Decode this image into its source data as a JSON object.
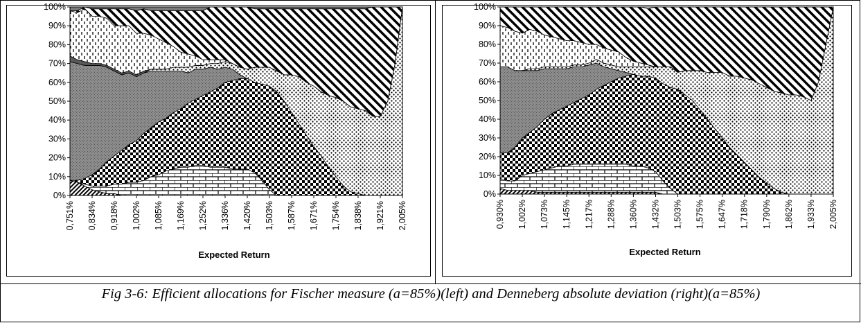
{
  "caption": "Fig 3-6: Efficient allocations for Fischer measure (a=85%)(left) and Denneberg absolute deviation (right)(a=85%)",
  "chart_data": [
    {
      "type": "area",
      "title": "",
      "xlabel": "Expected Return",
      "ylabel": "",
      "stacked": "percent",
      "ylim": [
        0,
        100
      ],
      "yticks": [
        "0%",
        "10%",
        "20%",
        "30%",
        "40%",
        "50%",
        "60%",
        "70%",
        "80%",
        "90%",
        "100%"
      ],
      "xticks": [
        "0,751%",
        "0,834%",
        "0,918%",
        "1,002%",
        "1,085%",
        "1,169%",
        "1,252%",
        "1,336%",
        "1,420%",
        "1,503%",
        "1,587%",
        "1,671%",
        "1,754%",
        "1,838%",
        "1,921%",
        "2,005%"
      ],
      "x": [
        0.751,
        0.779,
        0.807,
        0.834,
        0.862,
        0.89,
        0.918,
        0.946,
        0.974,
        1.002,
        1.03,
        1.058,
        1.085,
        1.113,
        1.141,
        1.169,
        1.197,
        1.224,
        1.252,
        1.28,
        1.308,
        1.336,
        1.364,
        1.392,
        1.42,
        1.448,
        1.475,
        1.503,
        1.531,
        1.559,
        1.587,
        1.615,
        1.643,
        1.671,
        1.698,
        1.726,
        1.754,
        1.782,
        1.81,
        1.838,
        1.866,
        1.893,
        1.921,
        1.949,
        1.977,
        2.005
      ],
      "series": [
        {
          "pattern": "diagonal-dark",
          "values": [
            8,
            7,
            5,
            3,
            2,
            1,
            1,
            0,
            0,
            0,
            0,
            0,
            0,
            0,
            0,
            0,
            0,
            0,
            0,
            0,
            0,
            0,
            0,
            0,
            0,
            0,
            0,
            0,
            0,
            0,
            0,
            0,
            0,
            0,
            0,
            0,
            0,
            0,
            0,
            0,
            0,
            0,
            0,
            0,
            0,
            0
          ]
        },
        {
          "pattern": "brick",
          "values": [
            0,
            0,
            1,
            2,
            3,
            4,
            5,
            6,
            7,
            7,
            8,
            10,
            11,
            13,
            14,
            15,
            15,
            16,
            16,
            15,
            15,
            15,
            14,
            14,
            14,
            12,
            8,
            3,
            0,
            0,
            0,
            0,
            0,
            0,
            0,
            0,
            0,
            0,
            0,
            0,
            0,
            0,
            0,
            0,
            0,
            0
          ]
        },
        {
          "pattern": "checker-large",
          "values": [
            0,
            1,
            3,
            6,
            9,
            13,
            15,
            18,
            20,
            22,
            25,
            26,
            28,
            28,
            30,
            31,
            34,
            35,
            37,
            40,
            42,
            45,
            47,
            48,
            48,
            48,
            51,
            55,
            55,
            50,
            44,
            38,
            32,
            26,
            21,
            15,
            10,
            5,
            2,
            1,
            0,
            0,
            0,
            0,
            0,
            0
          ]
        },
        {
          "pattern": "gray-dots",
          "values": [
            63,
            62,
            60,
            58,
            55,
            50,
            45,
            40,
            38,
            34,
            32,
            30,
            27,
            25,
            22,
            20,
            16,
            16,
            14,
            13,
            10,
            8,
            6,
            2,
            0,
            0,
            0,
            0,
            0,
            0,
            0,
            0,
            0,
            0,
            0,
            0,
            0,
            0,
            0,
            0,
            0,
            0,
            0,
            0,
            0,
            0
          ]
        },
        {
          "pattern": "fine-dots",
          "values": [
            0,
            0,
            0,
            0,
            0,
            0,
            0,
            0,
            0,
            0,
            0,
            1,
            1,
            1,
            2,
            2,
            3,
            2,
            2,
            2,
            3,
            3,
            3,
            4,
            5,
            8,
            9,
            10,
            11,
            14,
            20,
            25,
            28,
            32,
            34,
            38,
            42,
            45,
            45,
            45,
            45,
            42,
            42,
            50,
            70,
            100
          ]
        },
        {
          "pattern": "dark-gray",
          "values": [
            3,
            2,
            2,
            1,
            1,
            1,
            1,
            1,
            1,
            1,
            1,
            0,
            0,
            0,
            0,
            0,
            0,
            0,
            0,
            0,
            0,
            0,
            0,
            0,
            0,
            0,
            0,
            0,
            0,
            0,
            0,
            0,
            0,
            0,
            0,
            0,
            0,
            0,
            0,
            0,
            0,
            0,
            0,
            0,
            0,
            0
          ]
        },
        {
          "pattern": "dashes-vertical",
          "values": [
            24,
            25,
            28,
            25,
            25,
            25,
            23,
            25,
            24,
            22,
            20,
            18,
            16,
            14,
            11,
            8,
            7,
            5,
            3,
            2,
            2,
            1,
            0,
            0,
            0,
            0,
            0,
            0,
            0,
            0,
            0,
            0,
            0,
            0,
            0,
            0,
            0,
            0,
            0,
            0,
            0,
            0,
            0,
            0,
            0,
            0
          ]
        },
        {
          "pattern": "diagonal-stripe",
          "values": [
            0,
            1,
            1,
            4,
            4,
            5,
            9,
            9,
            9,
            12,
            13,
            13,
            15,
            17,
            19,
            22,
            23,
            24,
            26,
            28,
            28,
            28,
            30,
            32,
            33,
            31,
            31,
            31,
            33,
            35,
            35,
            36,
            39,
            41,
            44,
            46,
            47,
            49,
            52,
            53,
            54,
            58,
            58,
            50,
            30,
            0
          ]
        },
        {
          "pattern": "gray-top",
          "values": [
            2,
            2,
            0,
            1,
            1,
            1,
            1,
            1,
            1,
            2,
            1,
            2,
            2,
            2,
            2,
            2,
            2,
            2,
            2,
            0,
            0,
            0,
            0,
            0,
            0,
            1,
            1,
            1,
            1,
            1,
            1,
            1,
            1,
            1,
            1,
            1,
            1,
            1,
            1,
            1,
            1,
            0,
            0,
            0,
            0,
            0
          ]
        }
      ]
    },
    {
      "type": "area",
      "title": "",
      "xlabel": "Expected Return",
      "ylabel": "",
      "stacked": "percent",
      "ylim": [
        0,
        100
      ],
      "yticks": [
        "0%",
        "10%",
        "20%",
        "30%",
        "40%",
        "50%",
        "60%",
        "70%",
        "80%",
        "90%",
        "100%"
      ],
      "xticks": [
        "0,930%",
        "1,002%",
        "1,073%",
        "1,145%",
        "1,217%",
        "1,288%",
        "1,360%",
        "1,432%",
        "1,503%",
        "1,575%",
        "1,647%",
        "1,718%",
        "1,790%",
        "1,862%",
        "1,933%",
        "2,005%"
      ],
      "x": [
        0.93,
        0.954,
        0.978,
        1.002,
        1.025,
        1.049,
        1.073,
        1.097,
        1.121,
        1.145,
        1.169,
        1.193,
        1.217,
        1.24,
        1.264,
        1.288,
        1.312,
        1.336,
        1.36,
        1.384,
        1.408,
        1.432,
        1.456,
        1.48,
        1.503,
        1.527,
        1.551,
        1.575,
        1.599,
        1.623,
        1.647,
        1.671,
        1.695,
        1.718,
        1.742,
        1.766,
        1.79,
        1.814,
        1.838,
        1.862,
        1.886,
        1.91,
        1.933,
        1.957,
        1.981,
        2.005
      ],
      "series": [
        {
          "pattern": "diagonal-dark",
          "values": [
            3,
            2,
            2,
            2,
            2,
            1,
            1,
            1,
            1,
            1,
            1,
            1,
            1,
            1,
            1,
            1,
            1,
            1,
            1,
            1,
            1,
            1,
            0,
            0,
            0,
            0,
            0,
            0,
            0,
            0,
            0,
            0,
            0,
            0,
            0,
            0,
            0,
            0,
            0,
            0,
            0,
            0,
            0,
            0,
            0,
            0
          ]
        },
        {
          "pattern": "brick",
          "values": [
            5,
            5,
            5,
            8,
            9,
            11,
            12,
            13,
            14,
            14,
            15,
            15,
            15,
            15,
            15,
            15,
            15,
            15,
            14,
            14,
            13,
            11,
            7,
            3,
            0,
            0,
            0,
            0,
            0,
            0,
            0,
            0,
            0,
            0,
            0,
            0,
            0,
            0,
            0,
            0,
            0,
            0,
            0,
            0,
            0,
            0
          ]
        },
        {
          "pattern": "checker-large",
          "values": [
            14,
            15,
            18,
            20,
            22,
            24,
            27,
            29,
            30,
            32,
            33,
            35,
            37,
            40,
            42,
            44,
            46,
            47,
            49,
            48,
            49,
            50,
            52,
            54,
            56,
            53,
            50,
            45,
            40,
            35,
            30,
            25,
            21,
            17,
            13,
            9,
            6,
            3,
            1,
            0,
            0,
            0,
            0,
            0,
            0,
            0
          ]
        },
        {
          "pattern": "gray-dots",
          "values": [
            46,
            46,
            41,
            36,
            33,
            30,
            27,
            24,
            22,
            20,
            19,
            17,
            16,
            14,
            10,
            7,
            4,
            2,
            0,
            0,
            0,
            0,
            0,
            0,
            0,
            0,
            0,
            0,
            0,
            0,
            0,
            0,
            0,
            0,
            0,
            0,
            0,
            0,
            0,
            0,
            0,
            0,
            0,
            0,
            0,
            0
          ]
        },
        {
          "pattern": "fine-dots",
          "values": [
            0,
            0,
            0,
            0,
            1,
            1,
            1,
            1,
            1,
            1,
            1,
            1,
            1,
            2,
            2,
            2,
            2,
            3,
            4,
            5,
            5,
            6,
            9,
            11,
            9,
            13,
            16,
            21,
            25,
            30,
            35,
            38,
            42,
            45,
            48,
            50,
            51,
            52,
            53,
            53,
            53,
            52,
            50,
            60,
            80,
            100
          ]
        },
        {
          "pattern": "dashes-vertical",
          "values": [
            22,
            21,
            21,
            20,
            21,
            20,
            17,
            16,
            15,
            14,
            13,
            12,
            10,
            8,
            8,
            8,
            8,
            5,
            3,
            2,
            1,
            0,
            0,
            0,
            0,
            0,
            0,
            0,
            0,
            0,
            0,
            0,
            0,
            0,
            0,
            0,
            0,
            0,
            0,
            0,
            0,
            0,
            0,
            0,
            0,
            0
          ]
        },
        {
          "pattern": "diagonal-stripe",
          "values": [
            10,
            11,
            13,
            14,
            12,
            13,
            15,
            16,
            17,
            18,
            18,
            19,
            20,
            20,
            22,
            23,
            24,
            27,
            29,
            30,
            30,
            32,
            32,
            32,
            35,
            34,
            34,
            34,
            35,
            35,
            35,
            37,
            37,
            38,
            39,
            41,
            43,
            45,
            46,
            47,
            47,
            48,
            50,
            40,
            20,
            0
          ]
        }
      ]
    }
  ]
}
